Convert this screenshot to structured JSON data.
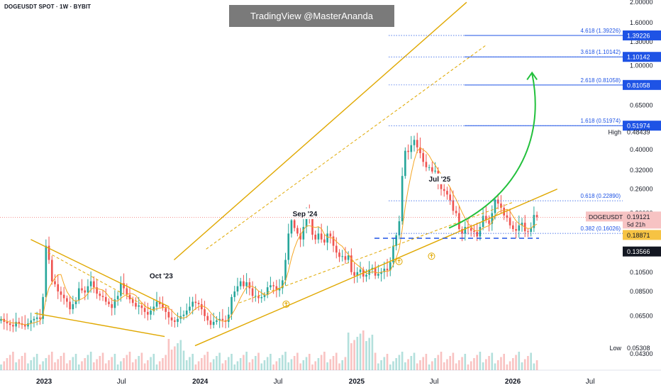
{
  "header": {
    "symbol": "DOGEUSDT SPOT · 1W · BYBIT"
  },
  "watermark": {
    "text": "TradingView @MasterAnanda"
  },
  "colors": {
    "up": "#26a69a",
    "down": "#ef5350",
    "trendline": "#e0a800",
    "ma": "#f5a623",
    "fib": "#1e53e5",
    "arrow": "#22c03c",
    "last_price_bg": "#f7c3c3",
    "support_bg": "#f6c343",
    "low_bg": "#131722"
  },
  "chart_data": {
    "type": "candlestick",
    "yscale": "log",
    "ylim": [
      0.036,
      2.05
    ],
    "xlim": [
      "2022-09-20",
      "2026-09-15"
    ],
    "price_ticks": [
      "2.00000",
      "1.60000",
      "1.30000",
      "1.00000",
      "0.65000",
      "0.40000",
      "0.32000",
      "0.26000",
      "0.20000",
      "0.10500",
      "0.08500",
      "0.06500",
      "0.04300"
    ],
    "time_ticks": [
      {
        "label": "2023",
        "date": "2023-01-01"
      },
      {
        "label": "Jul",
        "date": "2023-07-01"
      },
      {
        "label": "2024",
        "date": "2024-01-01"
      },
      {
        "label": "Jul",
        "date": "2024-07-01"
      },
      {
        "label": "2025",
        "date": "2025-01-01"
      },
      {
        "label": "Jul",
        "date": "2025-07-01"
      },
      {
        "label": "2026",
        "date": "2026-01-01"
      },
      {
        "label": "Jul",
        "date": "2026-07-01"
      }
    ],
    "candles_start": "2022-09-19",
    "closes": [
      0.063,
      0.061,
      0.06,
      0.059,
      0.058,
      0.061,
      0.06,
      0.059,
      0.058,
      0.06,
      0.062,
      0.063,
      0.064,
      0.063,
      0.08,
      0.14,
      0.12,
      0.095,
      0.092,
      0.085,
      0.082,
      0.079,
      0.076,
      0.07,
      0.074,
      0.077,
      0.088,
      0.086,
      0.084,
      0.09,
      0.095,
      0.089,
      0.083,
      0.081,
      0.08,
      0.076,
      0.074,
      0.071,
      0.078,
      0.081,
      0.093,
      0.088,
      0.082,
      0.078,
      0.075,
      0.072,
      0.073,
      0.071,
      0.068,
      0.066,
      0.069,
      0.072,
      0.076,
      0.074,
      0.071,
      0.068,
      0.064,
      0.062,
      0.061,
      0.063,
      0.065,
      0.066,
      0.069,
      0.072,
      0.076,
      0.075,
      0.074,
      0.07,
      0.065,
      0.062,
      0.059,
      0.061,
      0.062,
      0.063,
      0.062,
      0.061,
      0.066,
      0.08,
      0.085,
      0.09,
      0.095,
      0.09,
      0.094,
      0.088,
      0.081,
      0.081,
      0.079,
      0.08,
      0.082,
      0.089,
      0.091,
      0.09,
      0.086,
      0.088,
      0.096,
      0.12,
      0.16,
      0.185,
      0.17,
      0.16,
      0.15,
      0.172,
      0.205,
      0.19,
      0.158,
      0.15,
      0.16,
      0.15,
      0.145,
      0.16,
      0.155,
      0.14,
      0.13,
      0.124,
      0.125,
      0.12,
      0.126,
      0.105,
      0.101,
      0.105,
      0.108,
      0.1,
      0.102,
      0.108,
      0.11,
      0.101,
      0.103,
      0.105,
      0.109,
      0.107,
      0.117,
      0.14,
      0.157,
      0.183,
      0.3,
      0.395,
      0.39,
      0.42,
      0.445,
      0.41,
      0.385,
      0.35,
      0.33,
      0.33,
      0.315,
      0.318,
      0.28,
      0.26,
      0.255,
      0.245,
      0.23,
      0.205,
      0.2,
      0.168,
      0.16,
      0.172,
      0.17,
      0.165,
      0.163,
      0.155,
      0.172,
      0.194,
      0.185,
      0.178,
      0.2,
      0.232,
      0.222,
      0.212,
      0.195,
      0.19,
      0.175,
      0.168,
      0.165,
      0.175,
      0.18,
      0.164,
      0.163,
      0.17,
      0.196,
      0.191
    ],
    "annotations": [
      {
        "text": "Oct '23",
        "date": "2023-10-02",
        "price": 0.099
      },
      {
        "text": "Sep '24",
        "date": "2024-09-02",
        "price": 0.195
      },
      {
        "text": "Jul '25",
        "date": "2025-07-14",
        "price": 0.285
      }
    ],
    "fib_levels": [
      {
        "label": "4.618 (1.39226)",
        "value": 1.39226,
        "price_label": "1.39226"
      },
      {
        "label": "3.618 (1.10142)",
        "value": 1.10142,
        "price_label": "1.10142"
      },
      {
        "label": "2.618 (0.81058)",
        "value": 0.81058,
        "price_label": "0.81058"
      },
      {
        "label": "1.618 (0.51974)",
        "value": 0.51974,
        "price_label": "0.51974"
      },
      {
        "label": "0.618 (0.22890)",
        "value": 0.2289,
        "price_label": ""
      },
      {
        "label": "0.382 (0.16026)",
        "value": 0.16026,
        "price_label": ""
      }
    ],
    "high": {
      "label": "High",
      "value": "0.48439"
    },
    "last": {
      "symbol": "DOGEUSDT",
      "value": "0.19121",
      "countdown": "5d 21h"
    },
    "support": {
      "value": "0.18871"
    },
    "price_mark": {
      "value": "0.13566"
    },
    "low": {
      "label": "Low",
      "value": "0.05308"
    }
  }
}
